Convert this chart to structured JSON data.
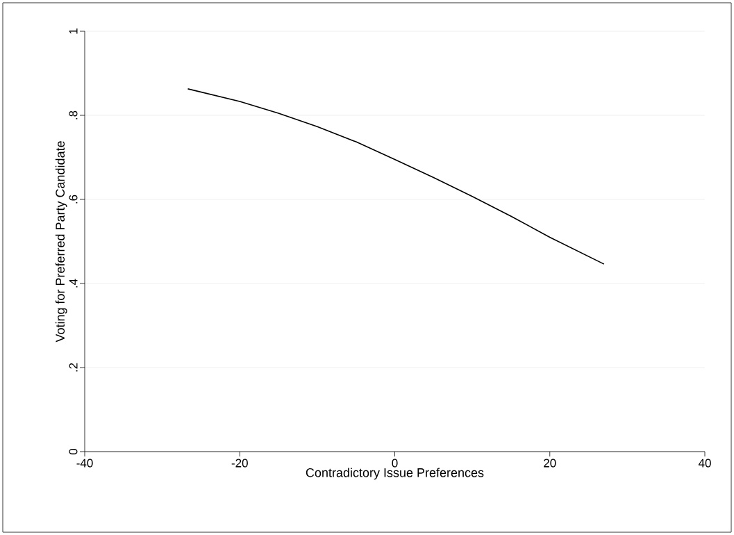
{
  "chart_data": {
    "type": "line",
    "xlabel": "Contradictory Issue Preferences",
    "ylabel": "Voting for Preferred Party Candidate",
    "x": [
      -26.7,
      -20,
      -15,
      -10,
      -5,
      0,
      5,
      10,
      15,
      20,
      27
    ],
    "series": [
      {
        "color": "#000000",
        "values": [
          0.863,
          0.833,
          0.805,
          0.773,
          0.737,
          0.695,
          0.652,
          0.607,
          0.56,
          0.51,
          0.446
        ]
      }
    ],
    "xlim": [
      -40,
      40
    ],
    "xticks": [
      -40,
      -20,
      0,
      20,
      40
    ],
    "ylim": [
      0,
      1
    ],
    "yticks": [
      0,
      {
        "value": 0.2,
        "label": ".2"
      },
      {
        "value": 0.4,
        "label": ".4"
      },
      {
        "value": 0.6,
        "label": ".6"
      },
      {
        "value": 0.8,
        "label": ".8"
      },
      1
    ],
    "grid": "y",
    "marker": "none",
    "line_style": "solid"
  }
}
